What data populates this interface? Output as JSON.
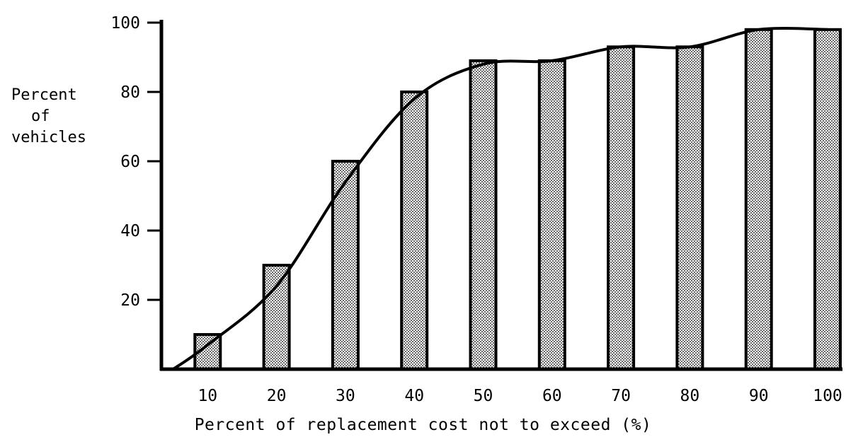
{
  "chart_data": {
    "type": "bar",
    "categories": [
      "10",
      "20",
      "30",
      "40",
      "50",
      "60",
      "70",
      "80",
      "90",
      "100"
    ],
    "values": [
      10,
      30,
      60,
      80,
      89,
      89,
      93,
      93,
      98,
      98
    ],
    "curve": {
      "x": [
        5,
        10,
        20,
        30,
        40,
        50,
        60,
        70,
        80,
        90,
        100
      ],
      "y": [
        0,
        7,
        24,
        54,
        78,
        88,
        89,
        93,
        93,
        98,
        98
      ]
    },
    "xlabel": "Percent of replacement cost not to exceed (%)",
    "ylabel_lines": [
      "Percent",
      "of",
      "vehicles"
    ],
    "yticks": [
      "20",
      "40",
      "60",
      "80",
      "100"
    ],
    "ylim": [
      0,
      100
    ],
    "grid": false,
    "bar_color": "#c8c8c8",
    "line_color": "#000000"
  }
}
